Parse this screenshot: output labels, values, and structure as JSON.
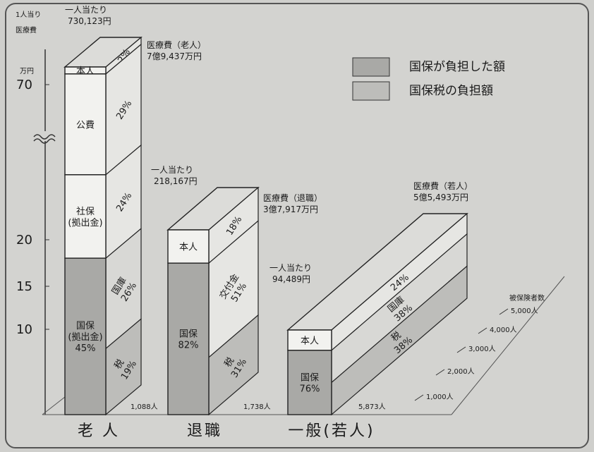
{
  "chart_data": {
    "type": "bar",
    "y_axis": {
      "header": [
        "1人当り",
        "医療費"
      ],
      "unit": "万円",
      "ticks": [
        70,
        20,
        15,
        10
      ],
      "break": true
    },
    "depth_axis": {
      "title": "被保険者数",
      "ticks": [
        "1,000人",
        "2,000人",
        "3,000人",
        "4,000人",
        "5,000人"
      ]
    },
    "legend": [
      {
        "label": "国保が負担した額",
        "color": "#a9a9a6"
      },
      {
        "label": "国保税の負担額",
        "color": "#bdbdba"
      }
    ],
    "groups": [
      {
        "category": "老 人",
        "per_capita_label": [
          "一人当たり",
          "730,123円"
        ],
        "per_capita_yen": 730123,
        "total_label": [
          "医療費（老人）",
          "7億9,437万円"
        ],
        "members": "1,088人",
        "front": [
          {
            "text": [
              "本人"
            ],
            "share": 2,
            "fill": "#f2f2ef"
          },
          {
            "text": [
              "公費"
            ],
            "share": 29,
            "fill": "#f2f2ef"
          },
          {
            "text": [
              "社保",
              "(拠出金)"
            ],
            "share": 24,
            "fill": "#f2f2ef"
          },
          {
            "text": [
              "国保",
              "(拠出金)",
              "45%"
            ],
            "share": 45,
            "fill": "#a9a9a6"
          }
        ],
        "side": [
          {
            "text": [
              "2%"
            ],
            "share": 2,
            "fill": "#e6e6e3"
          },
          {
            "text": [
              "29%"
            ],
            "share": 29,
            "fill": "#e6e6e3"
          },
          {
            "text": [
              "24%"
            ],
            "share": 24,
            "fill": "#e6e6e3"
          },
          {
            "text": [
              "国庫",
              "26%"
            ],
            "share": 26,
            "fill": "#d8d8d5"
          },
          {
            "text": [
              "税",
              "19%"
            ],
            "share": 19,
            "fill": "#bdbdba"
          }
        ]
      },
      {
        "category": "退職",
        "per_capita_label": [
          "一人当たり",
          "218,167円"
        ],
        "per_capita_yen": 218167,
        "total_label": [
          "医療費（退職）",
          "3億7,917万円"
        ],
        "members": "1,738人",
        "front": [
          {
            "text": [
              "本人"
            ],
            "share": 18,
            "fill": "#f2f2ef"
          },
          {
            "text": [
              "国保",
              "82%"
            ],
            "share": 82,
            "fill": "#a9a9a6"
          }
        ],
        "side": [
          {
            "text": [
              "18%"
            ],
            "share": 18,
            "fill": "#e6e6e3"
          },
          {
            "text": [
              "交付金",
              "51%"
            ],
            "share": 51,
            "fill": "#e6e6e3"
          },
          {
            "text": [
              "税",
              "31%"
            ],
            "share": 31,
            "fill": "#bdbdba"
          }
        ]
      },
      {
        "category": "一般(若人)",
        "per_capita_label": [
          "一人当たり",
          "94,489円"
        ],
        "per_capita_yen": 94489,
        "total_label": [
          "医療費（若人）",
          "5億5,493万円"
        ],
        "members": "5,873人",
        "front": [
          {
            "text": [
              "本人"
            ],
            "share": 24,
            "fill": "#f2f2ef"
          },
          {
            "text": [
              "国保",
              "76%"
            ],
            "share": 76,
            "fill": "#a9a9a6"
          }
        ],
        "side": [
          {
            "text": [
              "24%"
            ],
            "share": 24,
            "fill": "#e6e6e3"
          },
          {
            "text": [
              "国庫",
              "38%"
            ],
            "share": 38,
            "fill": "#d8d8d5"
          },
          {
            "text": [
              "税",
              "38%"
            ],
            "share": 38,
            "fill": "#bdbdba"
          }
        ]
      }
    ]
  }
}
